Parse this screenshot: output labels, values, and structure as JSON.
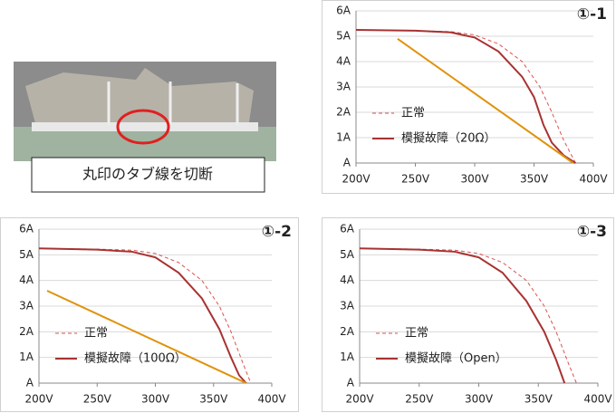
{
  "photo_caption": "丸印のタブ線を切断",
  "chart_data": [
    {
      "type": "line",
      "title": "①-1",
      "xlim": [
        200,
        400
      ],
      "ylim": [
        0,
        6
      ],
      "grid": true,
      "legend": "left",
      "xticks": [
        {
          "value": 200,
          "label": "200V"
        },
        {
          "value": 250,
          "label": "250V"
        },
        {
          "value": 300,
          "label": "300V"
        },
        {
          "value": 350,
          "label": "350V"
        },
        {
          "value": 400,
          "label": "400V"
        }
      ],
      "yticks": [
        {
          "value": 0,
          "label": "A"
        },
        {
          "value": 1,
          "label": "1A"
        },
        {
          "value": 2,
          "label": "2A"
        },
        {
          "value": 3,
          "label": "3A"
        },
        {
          "value": 4,
          "label": "4A"
        },
        {
          "value": 5,
          "label": "5A"
        },
        {
          "value": 6,
          "label": "6A"
        }
      ],
      "series": [
        {
          "name": "正常",
          "color": "#d9534f",
          "dash": true,
          "x": [
            200,
            250,
            280,
            300,
            320,
            340,
            355,
            365,
            375,
            385
          ],
          "values": [
            5.25,
            5.22,
            5.18,
            5.05,
            4.7,
            4.0,
            3.0,
            2.0,
            0.9,
            0
          ]
        },
        {
          "name": "模擬故障（20Ω）",
          "color": "#a83232",
          "dash": false,
          "x": [
            200,
            250,
            280,
            300,
            320,
            340,
            350,
            358,
            365,
            375,
            385
          ],
          "values": [
            5.25,
            5.22,
            5.15,
            4.95,
            4.4,
            3.4,
            2.6,
            1.5,
            0.8,
            0.3,
            0
          ]
        },
        {
          "color": "#e0920a",
          "dash": false,
          "x": [
            235,
            383
          ],
          "values": [
            4.9,
            0
          ]
        }
      ]
    },
    {
      "type": "line",
      "title": "①-2",
      "xlim": [
        200,
        400
      ],
      "ylim": [
        0,
        6
      ],
      "grid": true,
      "legend": "left",
      "xticks": [
        {
          "value": 200,
          "label": "200V"
        },
        {
          "value": 250,
          "label": "250V"
        },
        {
          "value": 300,
          "label": "300V"
        },
        {
          "value": 350,
          "label": "350V"
        },
        {
          "value": 400,
          "label": "400V"
        }
      ],
      "yticks": [
        {
          "value": 0,
          "label": "A"
        },
        {
          "value": 1,
          "label": "1A"
        },
        {
          "value": 2,
          "label": "2A"
        },
        {
          "value": 3,
          "label": "3A"
        },
        {
          "value": 4,
          "label": "4A"
        },
        {
          "value": 5,
          "label": "5A"
        },
        {
          "value": 6,
          "label": "6A"
        }
      ],
      "series": [
        {
          "name": "正常",
          "color": "#d9534f",
          "dash": true,
          "x": [
            200,
            250,
            280,
            300,
            320,
            340,
            355,
            365,
            375,
            382
          ],
          "values": [
            5.25,
            5.22,
            5.18,
            5.05,
            4.7,
            4.0,
            3.0,
            2.0,
            0.8,
            0
          ]
        },
        {
          "name": "模擬故障（100Ω）",
          "color": "#a83232",
          "dash": false,
          "x": [
            200,
            250,
            280,
            300,
            320,
            340,
            355,
            365,
            372,
            378
          ],
          "values": [
            5.25,
            5.2,
            5.12,
            4.9,
            4.3,
            3.3,
            2.1,
            1.0,
            0.3,
            0
          ]
        },
        {
          "color": "#e0920a",
          "dash": false,
          "x": [
            207,
            378
          ],
          "values": [
            3.6,
            0
          ]
        }
      ]
    },
    {
      "type": "line",
      "title": "①-3",
      "xlim": [
        200,
        400
      ],
      "ylim": [
        0,
        6
      ],
      "grid": true,
      "legend": "left",
      "xticks": [
        {
          "value": 200,
          "label": "200V"
        },
        {
          "value": 250,
          "label": "250V"
        },
        {
          "value": 300,
          "label": "300V"
        },
        {
          "value": 350,
          "label": "350V"
        },
        {
          "value": 400,
          "label": "400V"
        }
      ],
      "yticks": [
        {
          "value": 0,
          "label": "A"
        },
        {
          "value": 1,
          "label": "1A"
        },
        {
          "value": 2,
          "label": "2A"
        },
        {
          "value": 3,
          "label": "3A"
        },
        {
          "value": 4,
          "label": "4A"
        },
        {
          "value": 5,
          "label": "5A"
        },
        {
          "value": 6,
          "label": "6A"
        }
      ],
      "series": [
        {
          "name": "正常",
          "color": "#d9534f",
          "dash": true,
          "x": [
            200,
            250,
            280,
            300,
            320,
            340,
            355,
            365,
            375,
            382
          ],
          "values": [
            5.25,
            5.22,
            5.18,
            5.05,
            4.7,
            4.0,
            3.0,
            2.0,
            0.8,
            0
          ]
        },
        {
          "name": "模擬故障（Open）",
          "color": "#a83232",
          "dash": false,
          "x": [
            200,
            250,
            280,
            300,
            320,
            340,
            355,
            365,
            372
          ],
          "values": [
            5.25,
            5.2,
            5.12,
            4.9,
            4.3,
            3.2,
            2.0,
            0.9,
            0
          ]
        }
      ]
    }
  ]
}
